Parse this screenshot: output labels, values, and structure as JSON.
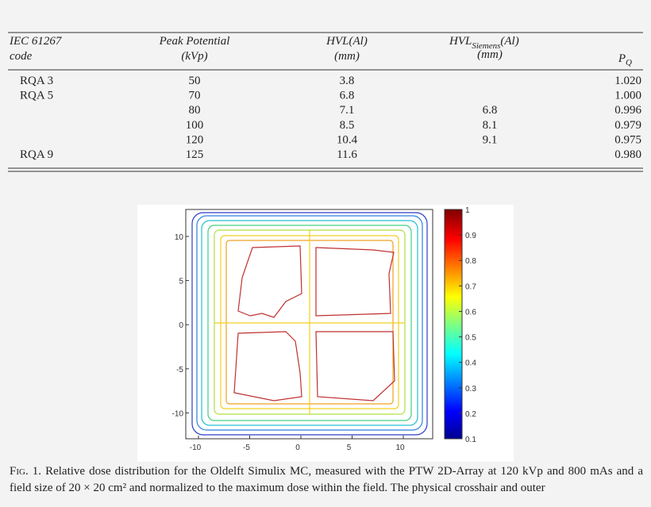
{
  "table": {
    "headers": [
      {
        "lines": [
          "IEC 61267",
          "code"
        ]
      },
      {
        "lines": [
          "Peak Potential",
          "(kVp)"
        ]
      },
      {
        "lines": [
          "HVL(Al)",
          "(mm)"
        ]
      },
      {
        "base": "HVL",
        "sub": "Siemens",
        "suffix": "(Al)",
        "line2": "(mm)"
      },
      {
        "base": "P",
        "sub": "Q"
      }
    ],
    "rows": [
      [
        "RQA 3",
        "50",
        "3.8",
        null,
        "1.020"
      ],
      [
        "RQA 5",
        "70",
        "6.8",
        null,
        "1.000"
      ],
      [
        null,
        "80",
        "7.1",
        "6.8",
        "0.996"
      ],
      [
        null,
        "100",
        "8.5",
        "8.1",
        "0.979"
      ],
      [
        null,
        "120",
        "10.4",
        "9.1",
        "0.975"
      ],
      [
        "RQA 9",
        "125",
        "11.6",
        null,
        "0.980"
      ]
    ]
  },
  "figure": {
    "xticks": [
      "-10",
      "-5",
      "0",
      "5",
      "10"
    ],
    "yticks": [
      "10",
      "5",
      "0",
      "-5",
      "-10"
    ],
    "colorbar_ticks": [
      "1",
      "0.9",
      "0.8",
      "0.7",
      "0.6",
      "0.5",
      "0.4",
      "0.3",
      "0.2",
      "0.1"
    ]
  },
  "caption": {
    "label": "Fig. 1.",
    "text": "Relative dose distribution for the Oldelft Simulix MC, measured with the PTW 2D-Array at 120 kVp and 800 mAs and a field size of 20 × 20 cm² and normalized to the maximum dose within the field. The physical crosshair and outer"
  }
}
